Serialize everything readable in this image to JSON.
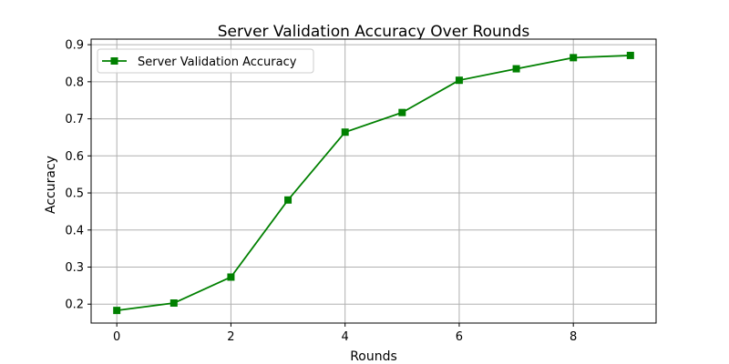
{
  "chart_data": {
    "type": "line",
    "title": "Server Validation Accuracy Over Rounds",
    "xlabel": "Rounds",
    "ylabel": "Accuracy",
    "x": [
      0,
      1,
      2,
      3,
      4,
      5,
      6,
      7,
      8,
      9
    ],
    "series": [
      {
        "name": "Server Validation Accuracy",
        "values": [
          0.183,
          0.203,
          0.273,
          0.481,
          0.664,
          0.717,
          0.804,
          0.835,
          0.865,
          0.871
        ],
        "color": "#008000",
        "marker": "square"
      }
    ],
    "xticks": [
      0,
      2,
      4,
      6,
      8
    ],
    "yticks": [
      0.2,
      0.3,
      0.4,
      0.5,
      0.6,
      0.7,
      0.8,
      0.9
    ],
    "xtick_labels": [
      "0",
      "2",
      "4",
      "6",
      "8"
    ],
    "ytick_labels": [
      "0.2",
      "0.3",
      "0.4",
      "0.5",
      "0.6",
      "0.7",
      "0.8",
      "0.9"
    ],
    "xlim": [
      -0.45,
      9.45
    ],
    "ylim": [
      0.149,
      0.915
    ],
    "grid": true,
    "legend_position": "top-left"
  }
}
